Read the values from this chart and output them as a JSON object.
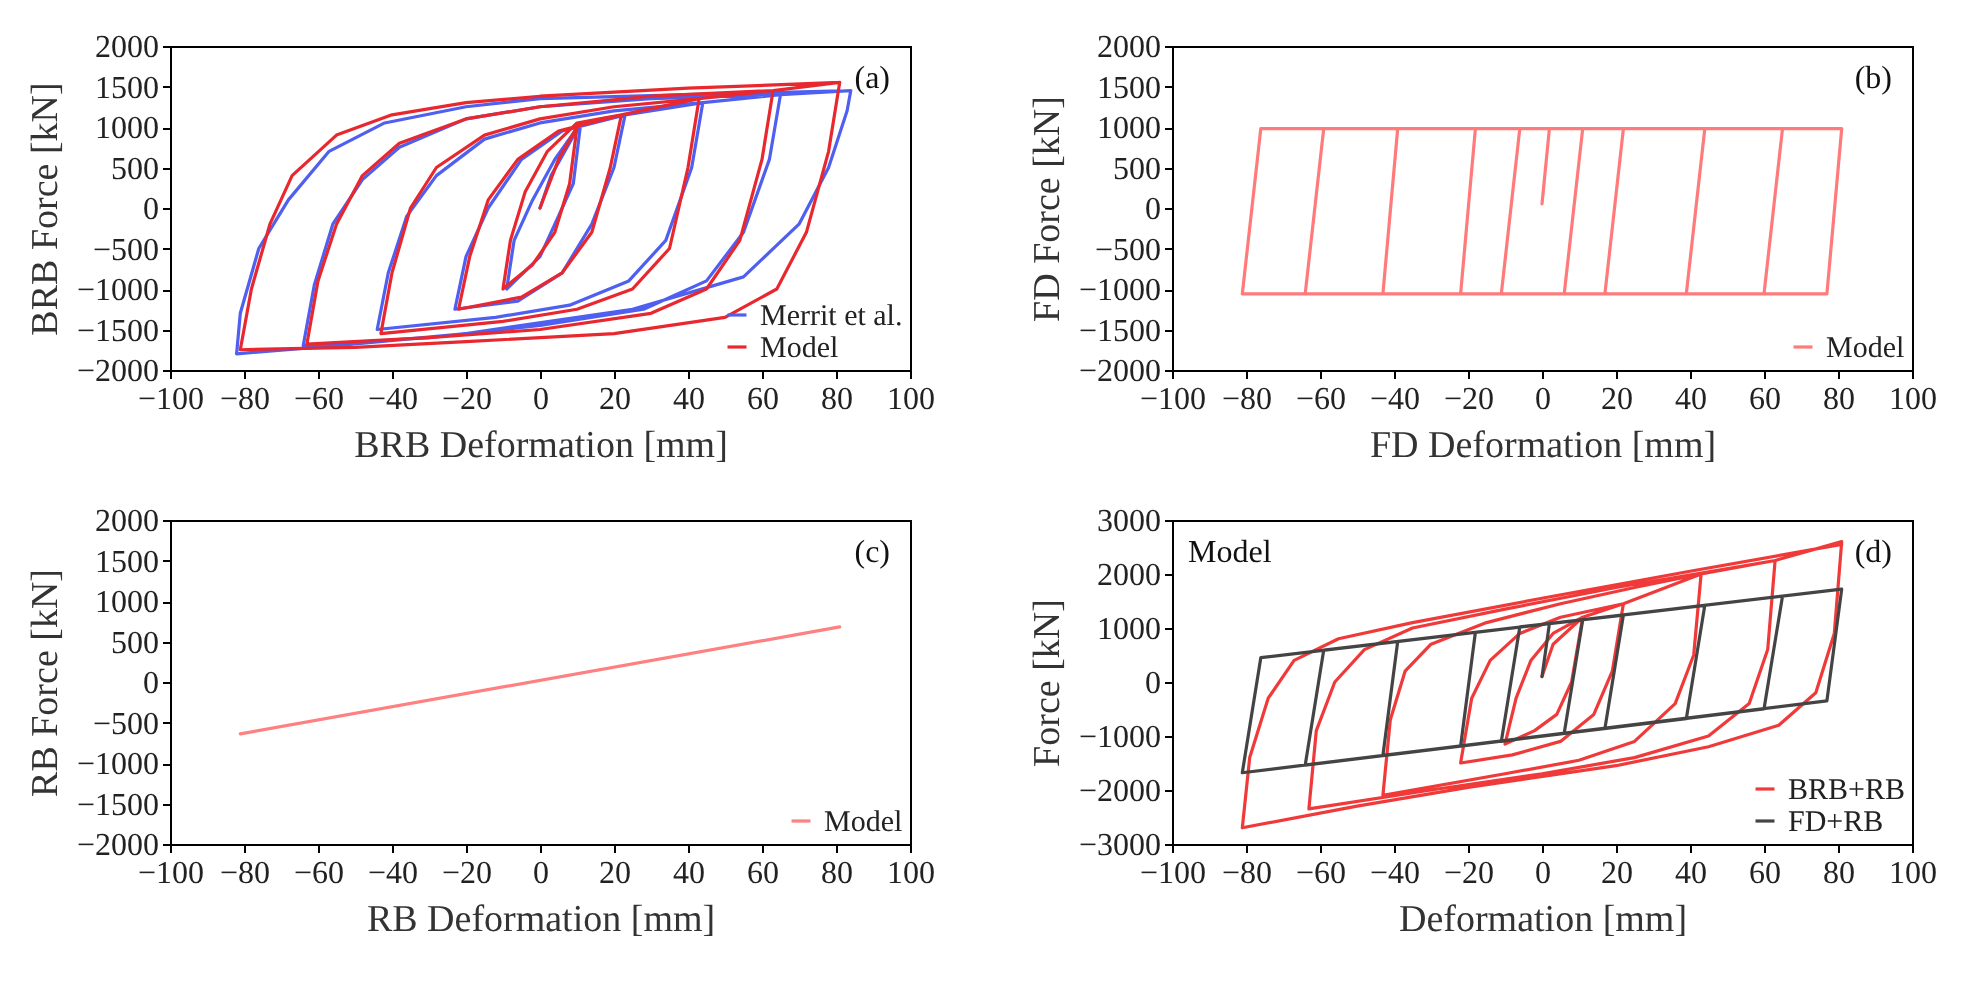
{
  "chart_data": [
    {
      "type": "line",
      "xlabel": "BRB Deformation [mm]",
      "ylabel": "BRB Force [kN]",
      "annotations": [
        "(a)"
      ],
      "xlim": [
        -100,
        100
      ],
      "xticks": [
        -100,
        -80,
        -60,
        -40,
        -20,
        0,
        20,
        40,
        60,
        80,
        100
      ],
      "ylim": [
        -2000,
        2000
      ],
      "yticks": [
        -2000,
        -1500,
        -1000,
        -500,
        0,
        500,
        1000,
        1500,
        2000
      ],
      "grid": false,
      "legend": "bottom right",
      "series": [
        {
          "name": "Merrit et al.",
          "color": "#4f5ff0",
          "x": [
            0,
            3,
            11,
            9,
            5,
            0,
            -9,
            -7,
            -2,
            4,
            11,
            23,
            20,
            14,
            6,
            -6,
            -23,
            -20,
            -14,
            -5,
            6,
            23,
            44,
            41,
            34,
            24,
            8,
            -12,
            -44,
            -41,
            -36,
            -28,
            -15,
            0,
            20,
            44,
            65,
            62,
            55,
            45,
            28,
            0,
            -30,
            -64,
            -61,
            -56,
            -48,
            -38,
            -20,
            0,
            30,
            65,
            84,
            83,
            78,
            70,
            55,
            25,
            -20,
            -55,
            -82,
            -81,
            -76,
            -68,
            -57,
            -42,
            -20,
            0,
            40,
            84
          ],
          "values": [
            0,
            400,
            1050,
            300,
            -100,
            -600,
            -1000,
            -400,
            100,
            600,
            1050,
            1150,
            500,
            -200,
            -800,
            -1150,
            -1250,
            -600,
            0,
            600,
            950,
            1150,
            1300,
            500,
            -400,
            -900,
            -1200,
            -1350,
            -1500,
            -800,
            -100,
            400,
            850,
            1050,
            1200,
            1300,
            1400,
            600,
            -300,
            -900,
            -1250,
            -1450,
            -1600,
            -1700,
            -950,
            -200,
            350,
            750,
            1100,
            1250,
            1350,
            1400,
            1450,
            1200,
            500,
            -200,
            -850,
            -1250,
            -1550,
            -1700,
            -1800,
            -1300,
            -500,
            100,
            700,
            1050,
            1250,
            1350,
            1400,
            1450
          ]
        },
        {
          "name": "Model",
          "color": "#e8282e",
          "x": [
            0,
            5,
            10,
            8,
            4,
            -2,
            -10,
            -8,
            -4,
            2,
            10,
            22,
            19,
            14,
            6,
            -5,
            -22,
            -19,
            -14,
            -6,
            5,
            22,
            43,
            40,
            35,
            25,
            10,
            -10,
            -43,
            -40,
            -35,
            -28,
            -15,
            0,
            20,
            43,
            63,
            60,
            54,
            45,
            30,
            0,
            -30,
            -63,
            -60,
            -55,
            -48,
            -38,
            -20,
            0,
            30,
            63,
            81,
            78,
            72,
            64,
            50,
            20,
            -20,
            -50,
            -81,
            -78,
            -73,
            -67,
            -55,
            -40,
            -20,
            0,
            40,
            81
          ],
          "values": [
            0,
            600,
            1000,
            300,
            -300,
            -700,
            -1000,
            -400,
            200,
            700,
            1050,
            1150,
            500,
            -300,
            -800,
            -1100,
            -1250,
            -600,
            100,
            600,
            950,
            1150,
            1350,
            500,
            -500,
            -1000,
            -1250,
            -1400,
            -1550,
            -800,
            0,
            500,
            900,
            1100,
            1250,
            1350,
            1450,
            600,
            -400,
            -1000,
            -1300,
            -1500,
            -1600,
            -1680,
            -900,
            -200,
            400,
            800,
            1100,
            1250,
            1380,
            1450,
            1550,
            700,
            -300,
            -1000,
            -1350,
            -1550,
            -1650,
            -1720,
            -1750,
            -1000,
            -200,
            400,
            900,
            1150,
            1300,
            1380,
            1480,
            1550
          ]
        }
      ]
    },
    {
      "type": "line",
      "xlabel": "FD Deformation [mm]",
      "ylabel": "FD Force [kN]",
      "annotations": [
        "(b)"
      ],
      "xlim": [
        -100,
        100
      ],
      "xticks": [
        -100,
        -80,
        -60,
        -40,
        -20,
        0,
        20,
        40,
        60,
        80,
        100
      ],
      "ylim": [
        -2000,
        2000
      ],
      "yticks": [
        -2000,
        -1500,
        -1000,
        -500,
        0,
        500,
        1000,
        1500,
        2000
      ],
      "grid": false,
      "legend": "bottom right",
      "series": [
        {
          "name": "Model",
          "color": "#ff7a7a",
          "x": [
            0,
            2,
            11,
            6,
            -11,
            -6,
            22,
            17,
            -22,
            -18,
            44,
            39,
            -43,
            -39,
            65,
            60,
            -64,
            -59,
            81,
            77,
            -81,
            -76,
            81
          ],
          "values": [
            50,
            980,
            980,
            -1060,
            -1060,
            980,
            980,
            -1060,
            -1060,
            980,
            980,
            -1060,
            -1060,
            980,
            980,
            -1060,
            -1060,
            980,
            980,
            -1060,
            -1060,
            980,
            980
          ]
        }
      ]
    },
    {
      "type": "line",
      "xlabel": "RB Deformation [mm]",
      "ylabel": "RB Force [kN]",
      "annotations": [
        "(c)"
      ],
      "xlim": [
        -100,
        100
      ],
      "xticks": [
        -100,
        -80,
        -60,
        -40,
        -20,
        0,
        20,
        40,
        60,
        80,
        100
      ],
      "ylim": [
        -2000,
        2000
      ],
      "yticks": [
        -2000,
        -1500,
        -1000,
        -500,
        0,
        500,
        1000,
        1500,
        2000
      ],
      "grid": false,
      "legend": "bottom right",
      "series": [
        {
          "name": "Model",
          "color": "#ff8080",
          "x": [
            -81,
            81
          ],
          "values": [
            -640,
            680
          ]
        }
      ]
    },
    {
      "type": "line",
      "xlabel": "Deformation [mm]",
      "ylabel": "Force [kN]",
      "annotations": [
        "(d)",
        "Model"
      ],
      "xlim": [
        -100,
        100
      ],
      "xticks": [
        -100,
        -80,
        -60,
        -40,
        -20,
        0,
        20,
        40,
        60,
        80,
        100
      ],
      "ylim": [
        -3000,
        3000
      ],
      "yticks": [
        -3000,
        -2000,
        -1000,
        0,
        1000,
        2000,
        3000
      ],
      "grid": false,
      "legend": "bottom right",
      "series": [
        {
          "name": "BRB+RB",
          "color": "#f03a3a",
          "x": [
            0,
            3,
            11,
            8,
            4,
            -2,
            -10,
            -7,
            -3,
            3,
            11,
            22,
            19,
            14,
            5,
            -8,
            -22,
            -19,
            -14,
            -6,
            5,
            22,
            43,
            41,
            36,
            25,
            10,
            -10,
            -43,
            -41,
            -37,
            -30,
            -15,
            5,
            25,
            43,
            63,
            61,
            56,
            45,
            25,
            0,
            -30,
            -63,
            -61,
            -56,
            -48,
            -35,
            -10,
            20,
            63,
            81,
            79,
            74,
            64,
            45,
            20,
            -20,
            -50,
            -81,
            -79,
            -74,
            -67,
            -55,
            -35,
            0,
            40,
            81
          ],
          "values": [
            100,
            700,
            1200,
            0,
            -600,
            -900,
            -1150,
            -300,
            400,
            900,
            1200,
            1450,
            200,
            -600,
            -1100,
            -1350,
            -1500,
            -300,
            400,
            900,
            1200,
            1450,
            2000,
            500,
            -400,
            -1100,
            -1450,
            -1700,
            -2100,
            -700,
            200,
            700,
            1100,
            1450,
            1750,
            2000,
            2250,
            600,
            -400,
            -1000,
            -1400,
            -1700,
            -2000,
            -2350,
            -900,
            0,
            600,
            1000,
            1350,
            1750,
            2250,
            2600,
            900,
            -200,
            -800,
            -1200,
            -1550,
            -1950,
            -2300,
            -2700,
            -1400,
            -300,
            400,
            800,
            1100,
            1550,
            2050,
            2550
          ]
        },
        {
          "name": "FD+RB",
          "color": "#444444",
          "x": [
            0,
            2,
            11,
            6,
            -11,
            -6,
            22,
            17,
            -22,
            -18,
            44,
            39,
            -43,
            -39,
            65,
            60,
            -64,
            -59,
            81,
            77,
            -81,
            -76,
            81
          ],
          "values": [
            100,
            1080,
            1150,
            -950,
            -1100,
            1020,
            1240,
            -860,
            -1190,
            920,
            1420,
            -680,
            -1360,
            750,
            1590,
            -500,
            -1540,
            590,
            1720,
            -350,
            -1680,
            450,
            1720
          ]
        }
      ]
    }
  ]
}
